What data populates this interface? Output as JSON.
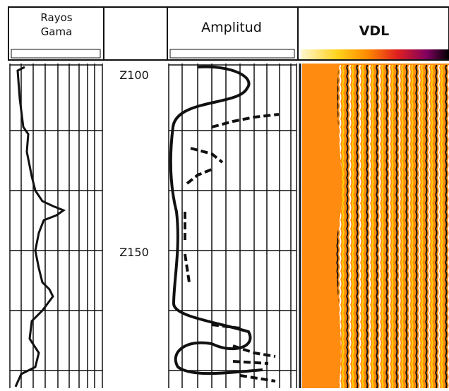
{
  "tracks": [
    {
      "title": "Rayos\nGama"
    },
    {
      "title": "Amplitud"
    },
    {
      "title": "VDL"
    }
  ],
  "depth_labels": [
    "Z100",
    "Z150"
  ]
}
